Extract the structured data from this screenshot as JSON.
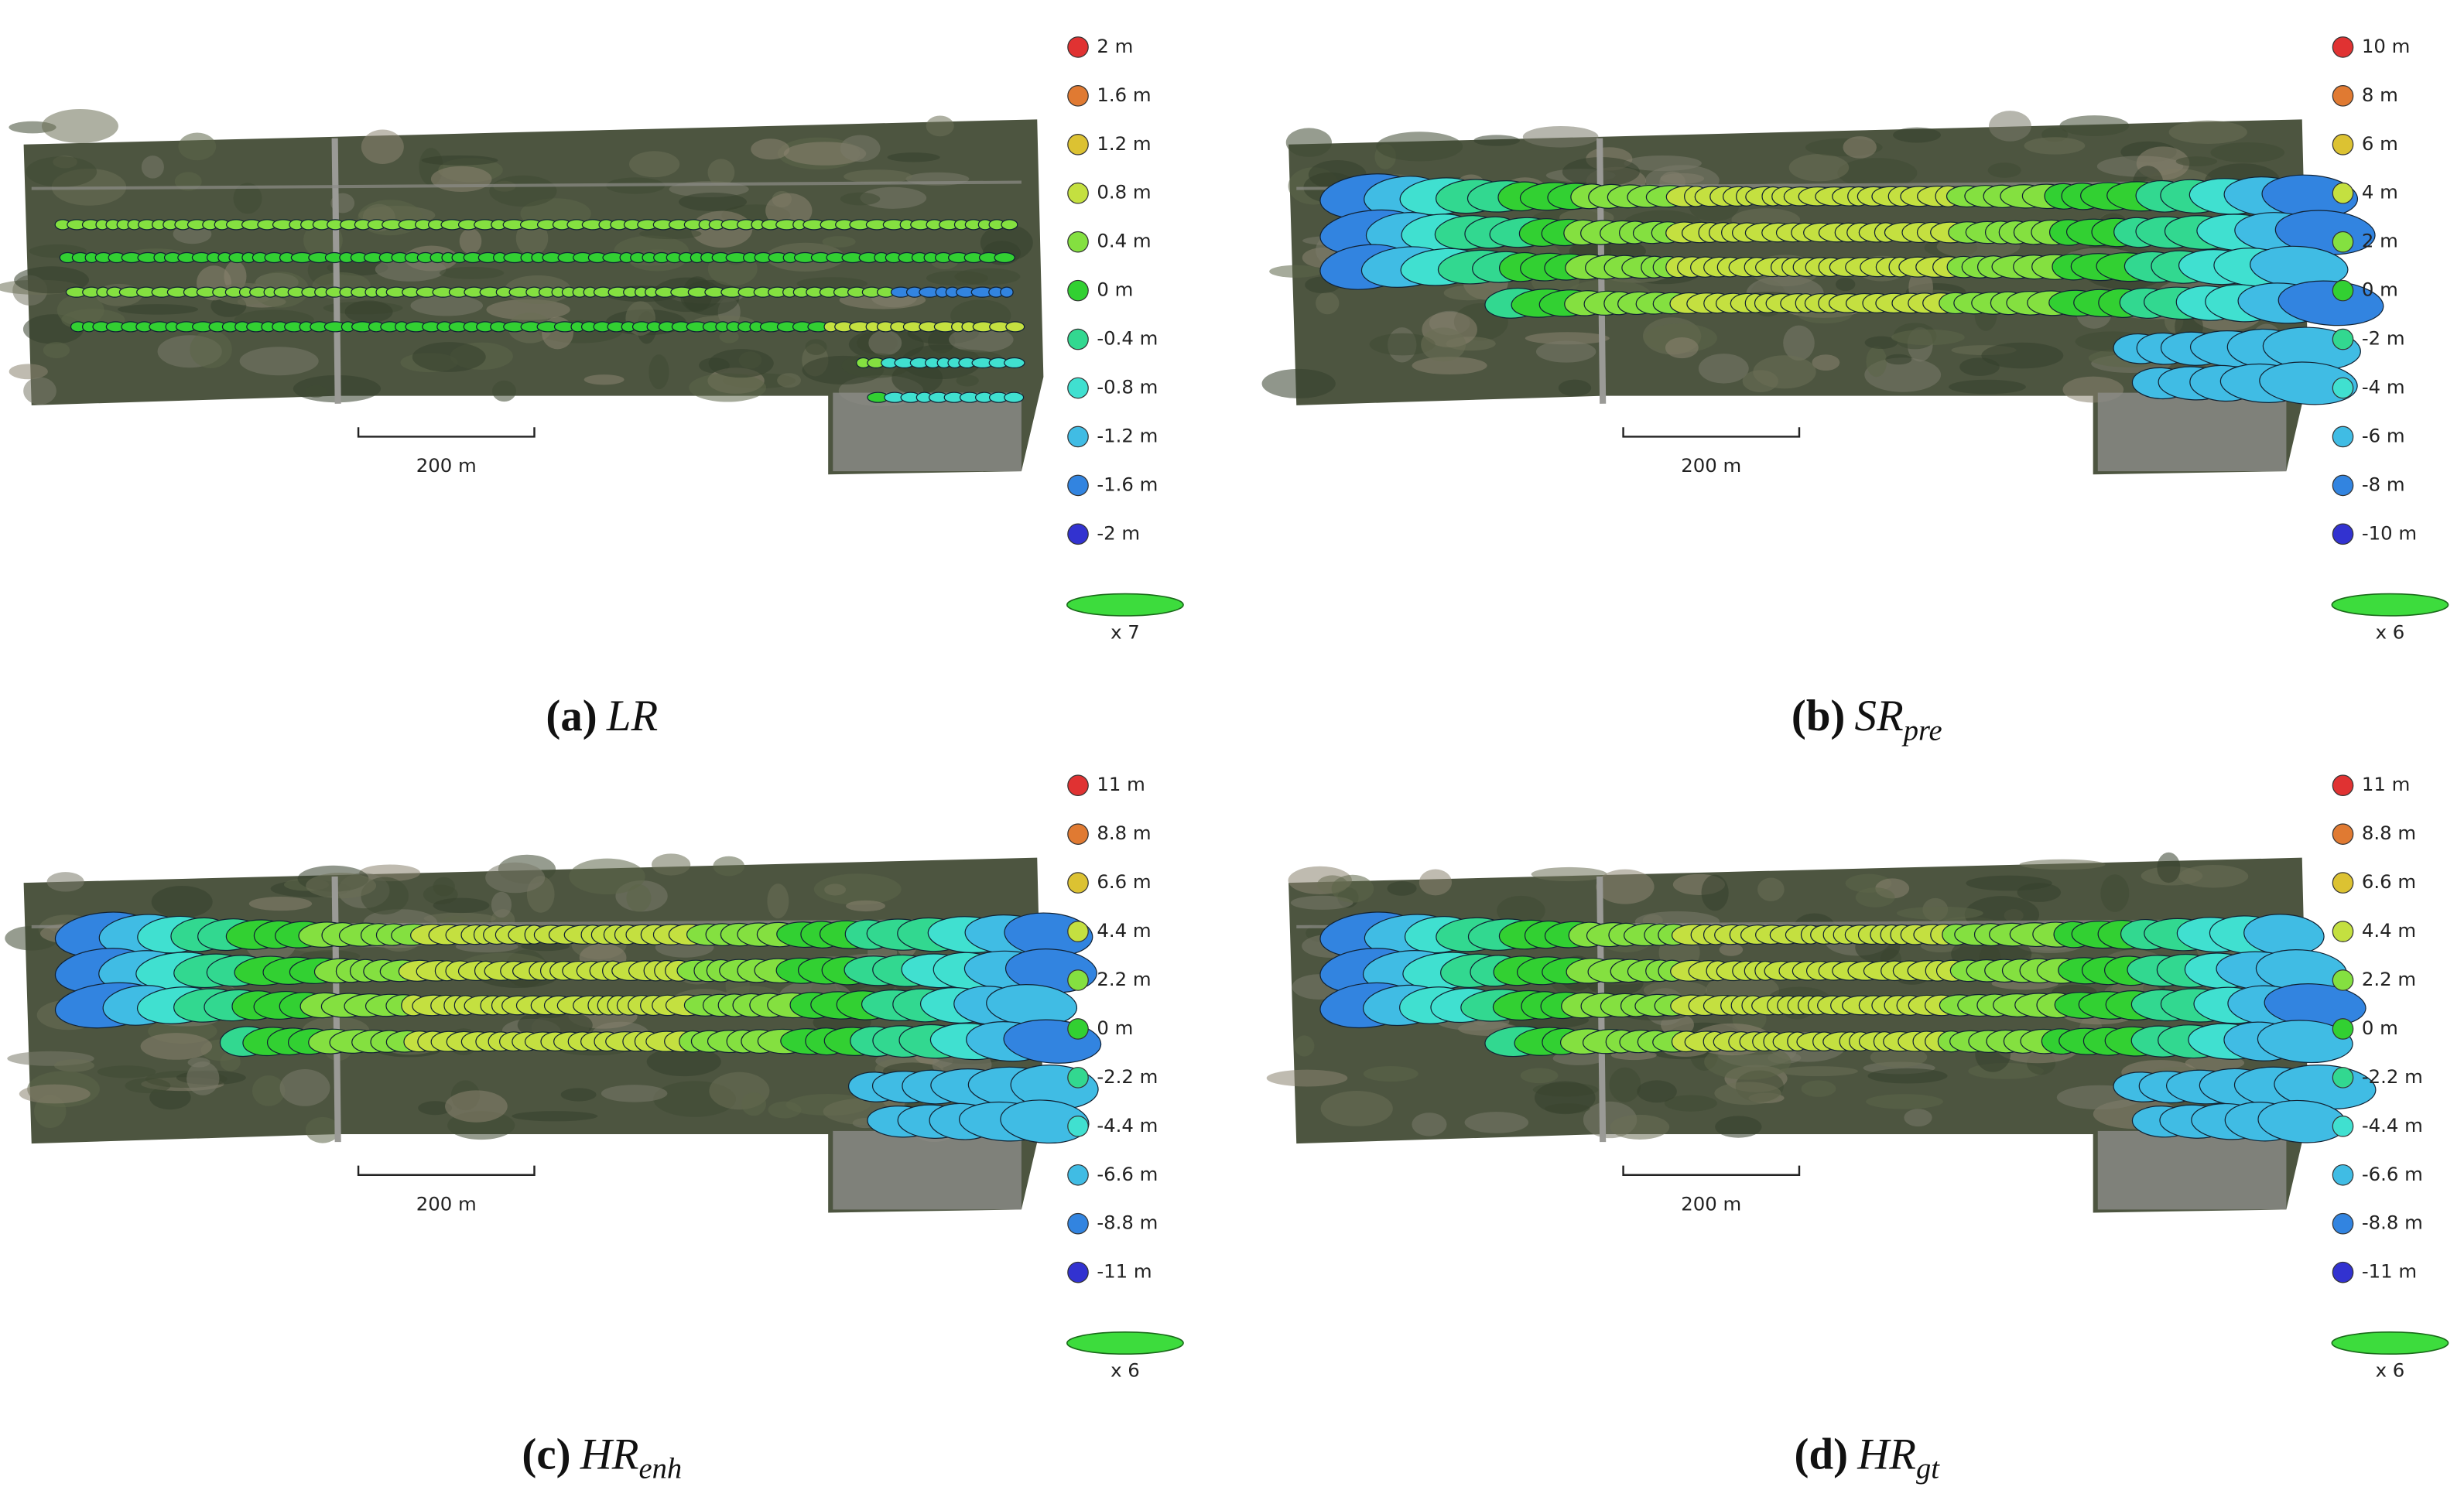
{
  "panels": [
    {
      "caption": {
        "label": "(a)",
        "main": "LR",
        "sub": null
      },
      "scale_bar": "200 m",
      "ellipse_scale": "x 7",
      "legend": [
        {
          "label": "2 m",
          "color": "#e03232"
        },
        {
          "label": "1.6 m",
          "color": "#e07a32"
        },
        {
          "label": "1.2 m",
          "color": "#dcc232"
        },
        {
          "label": "0.8 m",
          "color": "#c4e040"
        },
        {
          "label": "0.4 m",
          "color": "#84e040"
        },
        {
          "label": "0 m",
          "color": "#32d032"
        },
        {
          "label": "-0.4 m",
          "color": "#32d890"
        },
        {
          "label": "-0.8 m",
          "color": "#40e0d0"
        },
        {
          "label": "-1.2 m",
          "color": "#40bce4"
        },
        {
          "label": "-1.6 m",
          "color": "#3284e0"
        },
        {
          "label": "-2 m",
          "color": "#3232d0"
        }
      ]
    },
    {
      "caption": {
        "label": "(b)",
        "main": "SR",
        "sub": "pre"
      },
      "scale_bar": "200 m",
      "ellipse_scale": "x 6",
      "legend": [
        {
          "label": "10 m",
          "color": "#e03232"
        },
        {
          "label": "8 m",
          "color": "#e07a32"
        },
        {
          "label": "6 m",
          "color": "#dcc232"
        },
        {
          "label": "4 m",
          "color": "#c4e040"
        },
        {
          "label": "2 m",
          "color": "#84e040"
        },
        {
          "label": "0 m",
          "color": "#32d032"
        },
        {
          "label": "-2 m",
          "color": "#32d890"
        },
        {
          "label": "-4 m",
          "color": "#40e0d0"
        },
        {
          "label": "-6 m",
          "color": "#40bce4"
        },
        {
          "label": "-8 m",
          "color": "#3284e0"
        },
        {
          "label": "-10 m",
          "color": "#3232d0"
        }
      ]
    },
    {
      "caption": {
        "label": "(c)",
        "main": "HR",
        "sub": "enh"
      },
      "scale_bar": "200 m",
      "ellipse_scale": "x 6",
      "legend": [
        {
          "label": "11 m",
          "color": "#e03232"
        },
        {
          "label": "8.8 m",
          "color": "#e07a32"
        },
        {
          "label": "6.6 m",
          "color": "#dcc232"
        },
        {
          "label": "4.4 m",
          "color": "#c4e040"
        },
        {
          "label": "2.2 m",
          "color": "#84e040"
        },
        {
          "label": "0 m",
          "color": "#32d032"
        },
        {
          "label": "-2.2 m",
          "color": "#32d890"
        },
        {
          "label": "-4.4 m",
          "color": "#40e0d0"
        },
        {
          "label": "-6.6 m",
          "color": "#40bce4"
        },
        {
          "label": "-8.8 m",
          "color": "#3284e0"
        },
        {
          "label": "-11 m",
          "color": "#3232d0"
        }
      ]
    },
    {
      "caption": {
        "label": "(d)",
        "main": "HR",
        "sub": "gt"
      },
      "scale_bar": "200 m",
      "ellipse_scale": "x 6",
      "legend": [
        {
          "label": "11 m",
          "color": "#e03232"
        },
        {
          "label": "8.8 m",
          "color": "#e07a32"
        },
        {
          "label": "6.6 m",
          "color": "#dcc232"
        },
        {
          "label": "4.4 m",
          "color": "#c4e040"
        },
        {
          "label": "2.2 m",
          "color": "#84e040"
        },
        {
          "label": "0 m",
          "color": "#32d032"
        },
        {
          "label": "-2.2 m",
          "color": "#32d890"
        },
        {
          "label": "-4.4 m",
          "color": "#40e0d0"
        },
        {
          "label": "-6.6 m",
          "color": "#40bce4"
        },
        {
          "label": "-8.8 m",
          "color": "#3284e0"
        },
        {
          "label": "-11 m",
          "color": "#3232d0"
        }
      ]
    }
  ]
}
